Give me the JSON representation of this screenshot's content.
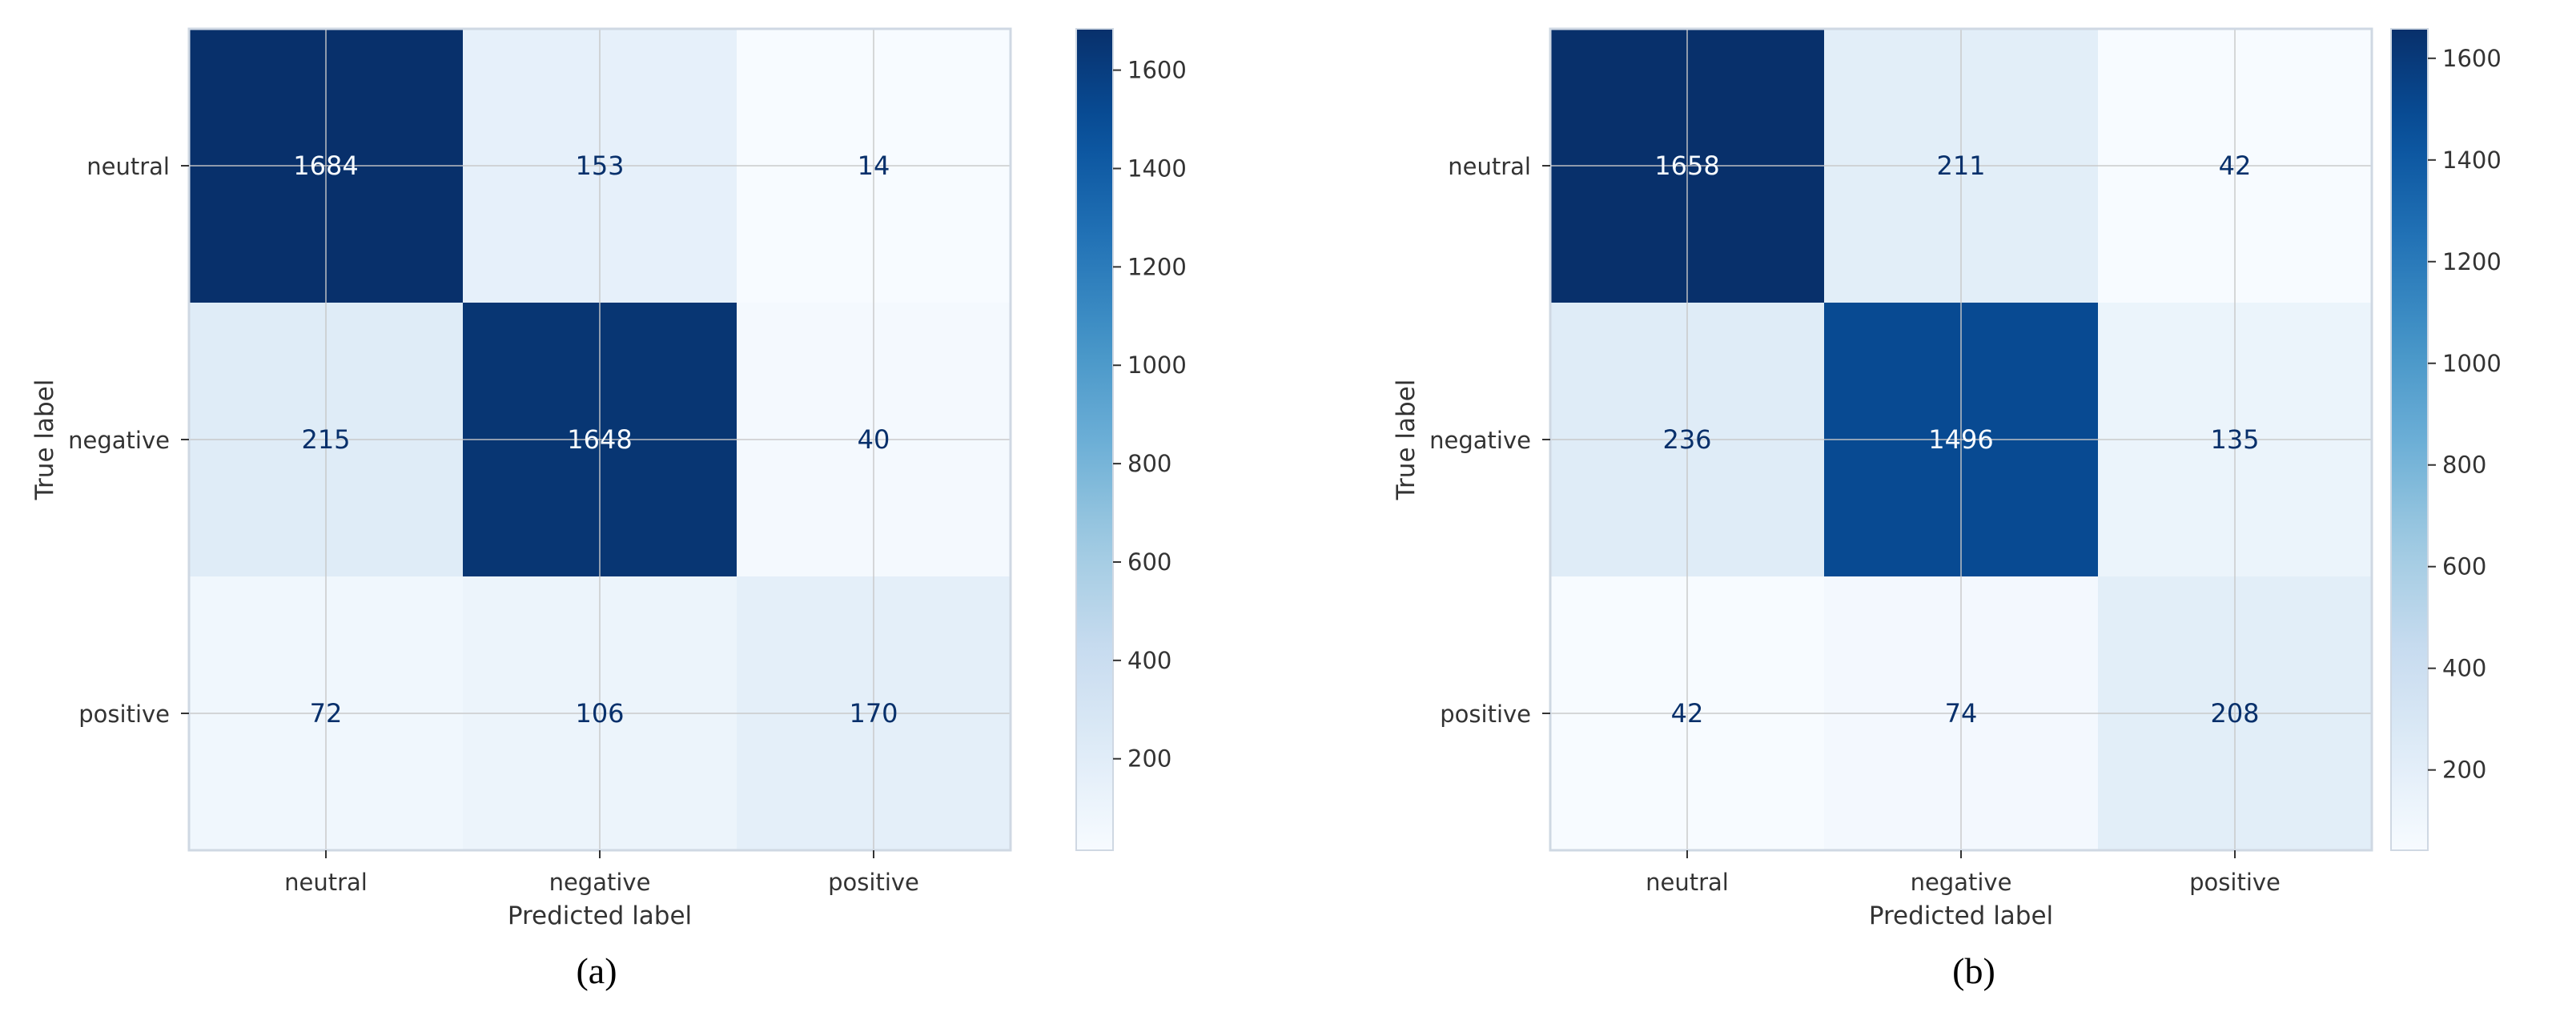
{
  "chart_data": [
    {
      "type": "heatmap",
      "panel_caption": "(a)",
      "title": "",
      "xlabel": "Predicted label",
      "ylabel": "True label",
      "x_categories": [
        "neutral",
        "negative",
        "positive"
      ],
      "y_categories": [
        "neutral",
        "negative",
        "positive"
      ],
      "matrix": [
        [
          1684,
          153,
          14
        ],
        [
          215,
          1648,
          40
        ],
        [
          72,
          106,
          170
        ]
      ],
      "colormap": "Blues",
      "colorbar": {
        "ticks": [
          200,
          400,
          600,
          800,
          1000,
          1200,
          1400,
          1600
        ],
        "range": [
          14,
          1684
        ]
      },
      "grid": true
    },
    {
      "type": "heatmap",
      "panel_caption": "(b)",
      "title": "",
      "xlabel": "Predicted label",
      "ylabel": "True label",
      "x_categories": [
        "neutral",
        "negative",
        "positive"
      ],
      "y_categories": [
        "neutral",
        "negative",
        "positive"
      ],
      "matrix": [
        [
          1658,
          211,
          42
        ],
        [
          236,
          1496,
          135
        ],
        [
          42,
          74,
          208
        ]
      ],
      "colormap": "Blues",
      "colorbar": {
        "ticks": [
          200,
          400,
          600,
          800,
          1000,
          1200,
          1400,
          1600
        ],
        "range": [
          42,
          1658
        ]
      },
      "grid": true
    }
  ],
  "colors": {
    "cmap_low": "#f7fbff",
    "cmap_high": "#08306b",
    "light_text": "#f7fbff",
    "dark_text": "#08306b",
    "axis_text": "#333333",
    "spine": "#cfd8e3",
    "grid": "#c8c8c8"
  }
}
